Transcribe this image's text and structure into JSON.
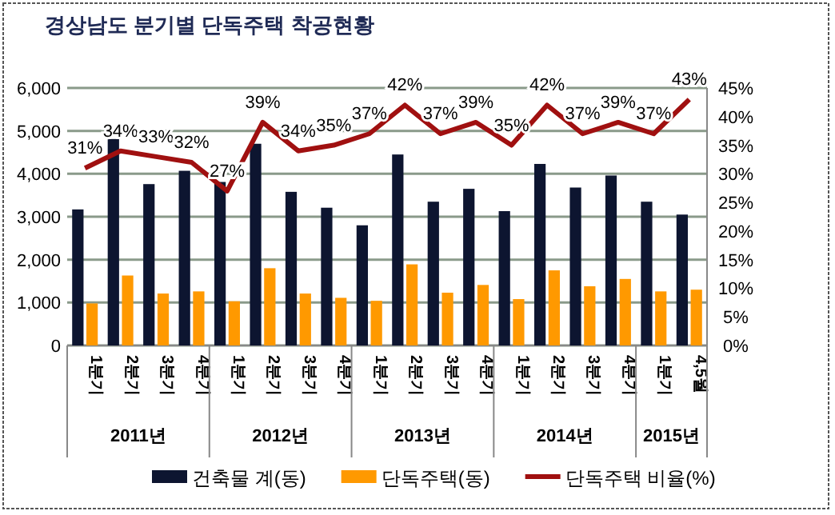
{
  "chart_data": {
    "type": "bar",
    "title": "경상남도 분기별 단독주택 착공현황",
    "categories": [
      "1분기",
      "2분기",
      "3분기",
      "4분기",
      "1분기",
      "2분기",
      "3분기",
      "4분기",
      "1분기",
      "2분기",
      "3분기",
      "4분기",
      "1분기",
      "2분기",
      "3분기",
      "4분기",
      "1분기",
      "4,5월"
    ],
    "annotations": [
      "2011년",
      "2012년",
      "2013년",
      "2014년",
      "2015년"
    ],
    "series": [
      {
        "name": "건축물 계(동)",
        "color": "#0d1530",
        "values": [
          3170,
          4810,
          3760,
          4070,
          3810,
          4700,
          3580,
          3210,
          2800,
          4450,
          3350,
          3650,
          3130,
          4230,
          3680,
          3960,
          3350,
          3050
        ]
      },
      {
        "name": "단독주택(동)",
        "color": "#ff9900",
        "values": [
          980,
          1630,
          1210,
          1260,
          1030,
          1800,
          1210,
          1110,
          1040,
          1890,
          1230,
          1410,
          1080,
          1750,
          1380,
          1550,
          1260,
          1300
        ]
      },
      {
        "name": "단독주택 비율(%)",
        "type": "line",
        "axis": "y2",
        "color": "#a01010",
        "values": [
          31,
          34,
          33,
          32,
          27,
          39,
          34,
          35,
          37,
          42,
          37,
          39,
          35,
          42,
          37,
          39,
          37,
          43
        ],
        "value_labels": [
          "31%",
          "34%",
          "33%",
          "32%",
          "27%",
          "39%",
          "34%",
          "35%",
          "37%",
          "42%",
          "37%",
          "39%",
          "35%",
          "42%",
          "37%",
          "39%",
          "37%",
          "43%"
        ]
      }
    ],
    "ylim": [
      0,
      6000
    ],
    "yticks": [
      0,
      {
        "value": 1000,
        "label": "1,000"
      },
      {
        "value": 2000,
        "label": "2,000"
      },
      {
        "value": 3000,
        "label": "3,000"
      },
      {
        "value": 4000,
        "label": "4,000"
      },
      {
        "value": 5000,
        "label": "5,000"
      },
      {
        "value": 6000,
        "label": "6,000"
      }
    ],
    "y2lim": [
      0,
      45
    ],
    "y2ticks": [
      {
        "value": 0,
        "label": "0%"
      },
      {
        "value": 5,
        "label": "5%"
      },
      {
        "value": 10,
        "label": "10%"
      },
      {
        "value": 15,
        "label": "15%"
      },
      {
        "value": 20,
        "label": "20%"
      },
      {
        "value": 25,
        "label": "25%"
      },
      {
        "value": 30,
        "label": "30%"
      },
      {
        "value": 35,
        "label": "35%"
      },
      {
        "value": 40,
        "label": "40%"
      },
      {
        "value": 45,
        "label": "45%"
      }
    ],
    "grid": "y",
    "legend": "bottom"
  }
}
